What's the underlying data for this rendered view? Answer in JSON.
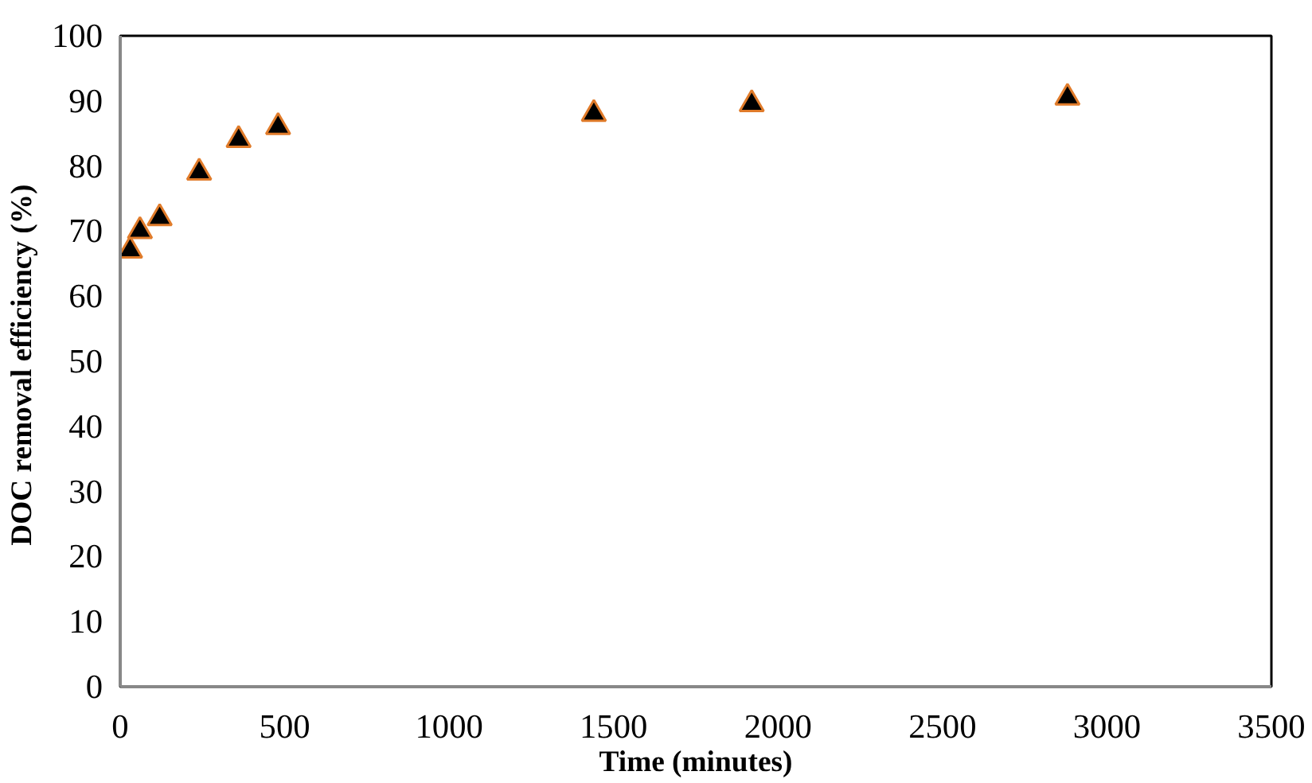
{
  "chart_data": {
    "type": "scatter",
    "xlabel": "Time (minutes)",
    "ylabel": "DOC  removal efficiency (%)",
    "x": [
      30,
      60,
      120,
      240,
      360,
      480,
      1440,
      1920,
      2880
    ],
    "series": [
      {
        "color": "#000000",
        "values": [
          67,
          70,
          72,
          79,
          84,
          86,
          88,
          89.5,
          90.5
        ]
      }
    ],
    "marker": "triangle",
    "xlim": [
      0,
      3500
    ],
    "xticks": [
      0,
      500,
      1000,
      1500,
      2000,
      2500,
      3000,
      3500
    ],
    "ylim": [
      0,
      100
    ],
    "yticks": [
      0,
      10,
      20,
      30,
      40,
      50,
      60,
      70,
      80,
      90,
      100
    ],
    "grid": false
  }
}
